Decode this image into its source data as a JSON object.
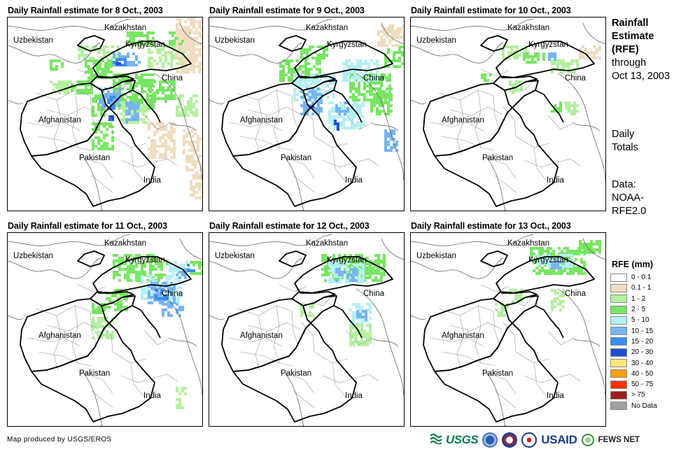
{
  "panels": [
    {
      "title": "Daily Rainfall estimate for 8 Oct., 2003"
    },
    {
      "title": "Daily Rainfall estimate for 9 Oct., 2003"
    },
    {
      "title": "Daily Rainfall estimate for 10 Oct., 2003"
    },
    {
      "title": "Daily Rainfall estimate for 11 Oct., 2003"
    },
    {
      "title": "Daily Rainfall estimate for 12 Oct., 2003"
    },
    {
      "title": "Daily Rainfall estimate for 13 Oct., 2003"
    }
  ],
  "map_labels": {
    "kazakhstan": "Kazakhstan",
    "uzbekistan": "Uzbekistan",
    "kyrgyzstan": "Kyrgyzstan",
    "china": "China",
    "afghanistan": "Afghanistan",
    "pakistan": "Pakistan",
    "india": "India"
  },
  "side": {
    "title_line1": "Rainfall",
    "title_line2": "Estimate",
    "title_line3": "(RFE)",
    "through": "through",
    "date": "Oct 13, 2003",
    "daily1": "Daily",
    "daily2": "Totals",
    "data1": "Data:",
    "data2": "NOAA-",
    "data3": "RFE2.0"
  },
  "legend": {
    "title": "RFE (mm)",
    "items": [
      {
        "label": "0 - 0.1",
        "color": "#ffffff"
      },
      {
        "label": "0.1 - 1",
        "color": "#f0dcbf"
      },
      {
        "label": "1 - 2",
        "color": "#b4f0a0"
      },
      {
        "label": "2 - 5",
        "color": "#78e664"
      },
      {
        "label": "5 - 10",
        "color": "#b4f0f5"
      },
      {
        "label": "10 - 15",
        "color": "#78b4f0"
      },
      {
        "label": "15 - 20",
        "color": "#3c8cf0"
      },
      {
        "label": "20 - 30",
        "color": "#1e50d2"
      },
      {
        "label": "30 - 40",
        "color": "#ffe678"
      },
      {
        "label": "40 - 50",
        "color": "#ffa000"
      },
      {
        "label": "50 - 75",
        "color": "#ff3200"
      },
      {
        "label": "> 75",
        "color": "#a01e1e"
      },
      {
        "label": "No Data",
        "color": "#a0a0a0"
      }
    ]
  },
  "credit": "Map produced by USGS/EROS",
  "logos": {
    "usgs": "USGS",
    "usaid": "USAID",
    "fews": "FEWS NET"
  },
  "rain_level_by_panel": [
    "heavy, widespread over Afghanistan, Kyrgyzstan, Tajikistan and western China",
    "moderate over northeast Afghanistan and China",
    "light scattered",
    "moderate over Kyrgyzstan and western China",
    "light over Kyrgyzstan",
    "light over Kyrgyzstan"
  ]
}
